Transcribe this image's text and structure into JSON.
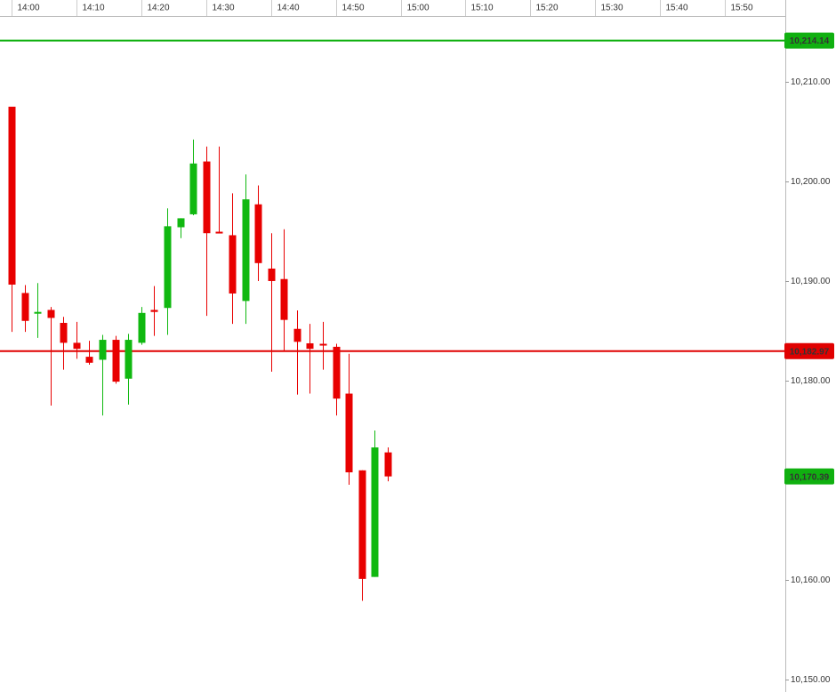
{
  "chart_data": {
    "type": "candlestick",
    "x": [
      840,
      842,
      844,
      846,
      848,
      850,
      852,
      854,
      856,
      858,
      860,
      862,
      864,
      866,
      868,
      870,
      872,
      874,
      876,
      878,
      880,
      882,
      884,
      886,
      888,
      890,
      892,
      894,
      896,
      898
    ],
    "open": [
      10207.5,
      10188.8,
      10186.8,
      10187.1,
      10185.8,
      10183.8,
      10182.4,
      10182.1,
      10184.1,
      10180.2,
      10183.8,
      10187.1,
      10187.3,
      10195.4,
      10196.7,
      10202.0,
      10194.95,
      10194.6,
      10188.0,
      10197.7,
      10191.25,
      10190.2,
      10185.2,
      10183.75,
      10183.7,
      10183.4,
      10178.7,
      10171.0,
      10160.3,
      10172.8
    ],
    "high": [
      10207.5,
      10189.6,
      10189.8,
      10187.4,
      10186.4,
      10185.9,
      10184.0,
      10184.6,
      10184.5,
      10184.7,
      10187.4,
      10189.5,
      10197.3,
      10196.3,
      10204.2,
      10203.5,
      10203.5,
      10198.8,
      10200.7,
      10199.6,
      10194.8,
      10195.2,
      10187.05,
      10185.7,
      10185.9,
      10183.7,
      10182.7,
      10171.0,
      10175.0,
      10173.3
    ],
    "low": [
      10184.9,
      10184.9,
      10184.3,
      10177.5,
      10181.1,
      10182.2,
      10181.6,
      10176.5,
      10179.7,
      10177.6,
      10183.6,
      10184.5,
      10184.6,
      10194.3,
      10196.6,
      10186.5,
      10194.8,
      10185.7,
      10185.7,
      10190.0,
      10180.9,
      10182.9,
      10178.6,
      10178.7,
      10181.1,
      10176.5,
      10169.55,
      10157.9,
      10160.3,
      10169.9
    ],
    "close": [
      10189.64,
      10186.0,
      10186.9,
      10186.3,
      10183.8,
      10183.2,
      10181.8,
      10184.1,
      10179.9,
      10184.1,
      10186.8,
      10186.9,
      10195.5,
      10196.3,
      10201.8,
      10194.8,
      10194.85,
      10188.75,
      10198.2,
      10191.8,
      10190.0,
      10186.1,
      10183.9,
      10183.2,
      10183.6,
      10178.2,
      10170.8,
      10160.1,
      10173.3,
      10170.39
    ],
    "up_color": "#10b810",
    "down_color": "#e80000",
    "xlim": [
      838.22,
      959.3
    ],
    "xticks": [
      {
        "value": 840,
        "label": "14:00"
      },
      {
        "value": 850,
        "label": "14:10"
      },
      {
        "value": 860,
        "label": "14:20"
      },
      {
        "value": 870,
        "label": "14:30"
      },
      {
        "value": 880,
        "label": "14:40"
      },
      {
        "value": 890,
        "label": "14:50"
      },
      {
        "value": 900,
        "label": "15:00"
      },
      {
        "value": 910,
        "label": "15:10"
      },
      {
        "value": 920,
        "label": "15:20"
      },
      {
        "value": 930,
        "label": "15:30"
      },
      {
        "value": 940,
        "label": "15:40"
      },
      {
        "value": 950,
        "label": "15:50"
      }
    ],
    "ylim": [
      10148.75,
      10218.21
    ],
    "yticks": [
      {
        "value": 10150,
        "label": "10,150.00"
      },
      {
        "value": 10160,
        "label": "10,160.00"
      },
      {
        "value": 10170,
        "label": "10,170.00"
      },
      {
        "value": 10180,
        "label": "10,180.00"
      },
      {
        "value": 10190,
        "label": "10,190.00"
      },
      {
        "value": 10200,
        "label": "10,200.00"
      },
      {
        "value": 10210,
        "label": "10,210.00"
      }
    ],
    "lines": [
      {
        "value": 10214.14,
        "label": "10,214.14",
        "color": "#10b010"
      },
      {
        "value": 10182.97,
        "label": "10,182.97",
        "color": "#e00000"
      }
    ],
    "last_price": {
      "value": 10170.39,
      "label": "10,170.39",
      "color": "#10b010"
    }
  }
}
